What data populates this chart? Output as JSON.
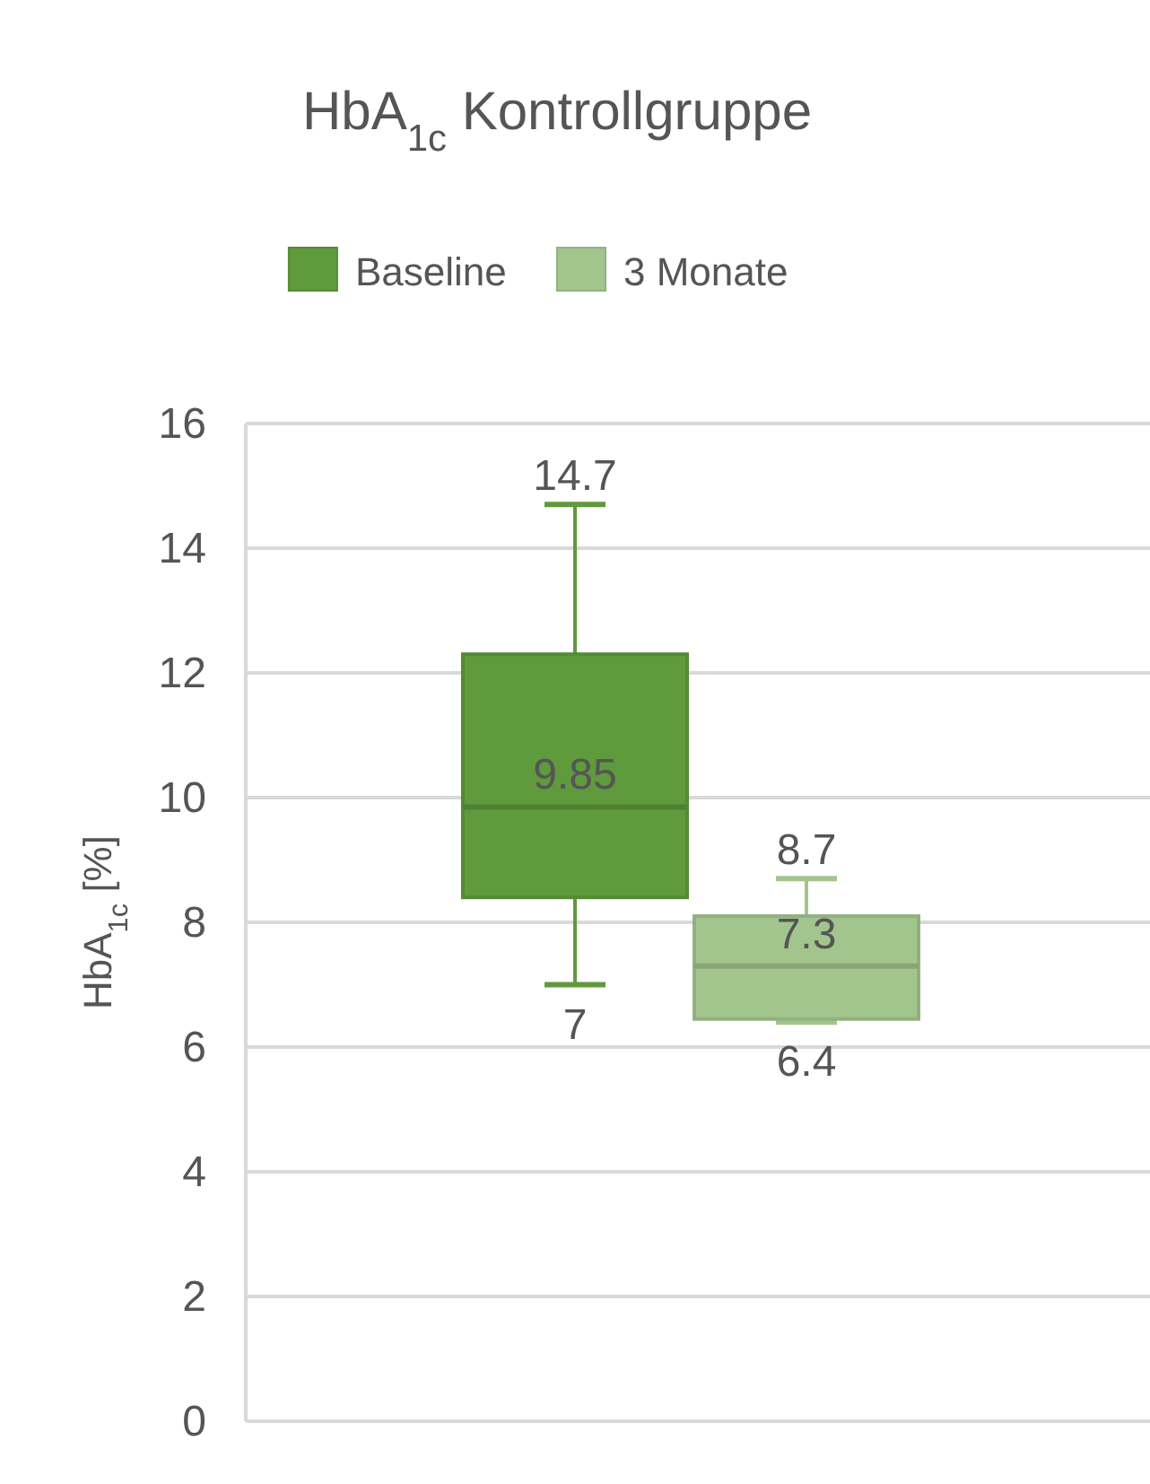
{
  "chart_data": {
    "type": "box",
    "title": "HbA$_{1c}$ Kontrollgruppe",
    "ylabel": "HbA$_{1c}$ [%]",
    "categories": [
      null
    ],
    "series": [
      {
        "name": "Baseline",
        "color": "#5f9a3c",
        "boxes": [
          {
            "low": 7,
            "q1": 8.4,
            "median": 9.85,
            "q3": 12.3,
            "high": 14.7
          }
        ]
      },
      {
        "name": "3 Monate",
        "color": "#a2c58e",
        "boxes": [
          {
            "low": 6.4,
            "q1": 6.45,
            "median": 7.3,
            "q3": 8.1,
            "high": 8.7
          }
        ]
      }
    ],
    "annotations": [
      {
        "text": "14.7",
        "y": 14.7
      },
      {
        "text": "9.85",
        "y": 9.85
      },
      {
        "text": "7",
        "y": 7
      },
      {
        "text": "8.7",
        "y": 8.7
      },
      {
        "text": "7.3",
        "y": 7.3
      },
      {
        "text": "6.4",
        "y": 6.4
      }
    ],
    "ylim": [
      0,
      16
    ],
    "yticks": [
      0,
      2,
      4,
      6,
      8,
      10,
      12,
      14,
      16
    ],
    "grid": "y",
    "legend": "top"
  }
}
